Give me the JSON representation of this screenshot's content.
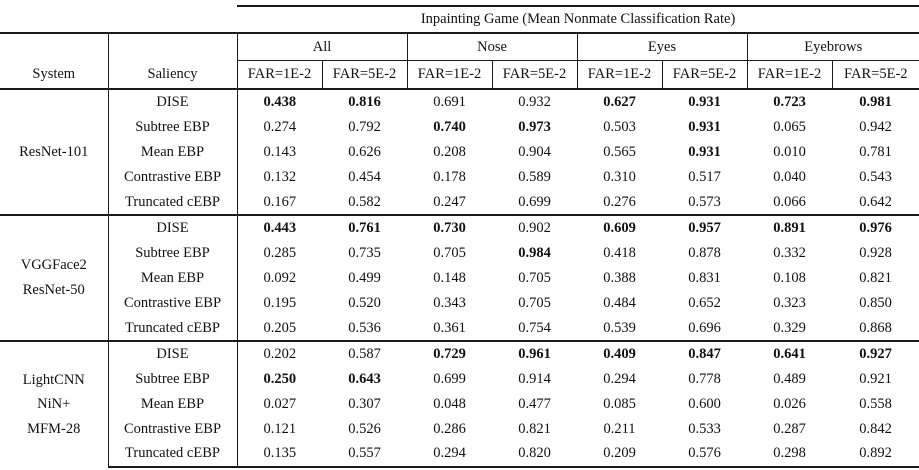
{
  "title": "Inpainting Game (Mean Nonmate Classification Rate)",
  "columns": {
    "system_label": "System",
    "saliency_label": "Saliency",
    "groups": [
      "All",
      "Nose",
      "Eyes",
      "Eyebrows"
    ],
    "far_labels": [
      "FAR=1E-2",
      "FAR=5E-2",
      "FAR=1E-2",
      "FAR=5E-2",
      "FAR=1E-2",
      "FAR=5E-2",
      "FAR=1E-2",
      "FAR=5E-2"
    ]
  },
  "blocks": [
    {
      "system": "ResNet-101",
      "rows": [
        {
          "saliency": "DISE",
          "values": [
            "0.438",
            "0.816",
            "0.691",
            "0.932",
            "0.627",
            "0.931",
            "0.723",
            "0.981"
          ],
          "bold": [
            true,
            true,
            false,
            false,
            true,
            true,
            true,
            true
          ]
        },
        {
          "saliency": "Subtree EBP",
          "values": [
            "0.274",
            "0.792",
            "0.740",
            "0.973",
            "0.503",
            "0.931",
            "0.065",
            "0.942"
          ],
          "bold": [
            false,
            false,
            true,
            true,
            false,
            true,
            false,
            false
          ]
        },
        {
          "saliency": "Mean EBP",
          "values": [
            "0.143",
            "0.626",
            "0.208",
            "0.904",
            "0.565",
            "0.931",
            "0.010",
            "0.781"
          ],
          "bold": [
            false,
            false,
            false,
            false,
            false,
            true,
            false,
            false
          ]
        },
        {
          "saliency": "Contrastive EBP",
          "values": [
            "0.132",
            "0.454",
            "0.178",
            "0.589",
            "0.310",
            "0.517",
            "0.040",
            "0.543"
          ],
          "bold": [
            false,
            false,
            false,
            false,
            false,
            false,
            false,
            false
          ]
        },
        {
          "saliency": "Truncated cEBP",
          "values": [
            "0.167",
            "0.582",
            "0.247",
            "0.699",
            "0.276",
            "0.573",
            "0.066",
            "0.642"
          ],
          "bold": [
            false,
            false,
            false,
            false,
            false,
            false,
            false,
            false
          ]
        }
      ]
    },
    {
      "system": "VGGFace2\nResNet-50",
      "rows": [
        {
          "saliency": "DISE",
          "values": [
            "0.443",
            "0.761",
            "0.730",
            "0.902",
            "0.609",
            "0.957",
            "0.891",
            "0.976"
          ],
          "bold": [
            true,
            true,
            true,
            false,
            true,
            true,
            true,
            true
          ]
        },
        {
          "saliency": "Subtree EBP",
          "values": [
            "0.285",
            "0.735",
            "0.705",
            "0.984",
            "0.418",
            "0.878",
            "0.332",
            "0.928"
          ],
          "bold": [
            false,
            false,
            false,
            true,
            false,
            false,
            false,
            false
          ]
        },
        {
          "saliency": "Mean EBP",
          "values": [
            "0.092",
            "0.499",
            "0.148",
            "0.705",
            "0.388",
            "0.831",
            "0.108",
            "0.821"
          ],
          "bold": [
            false,
            false,
            false,
            false,
            false,
            false,
            false,
            false
          ]
        },
        {
          "saliency": "Contrastive EBP",
          "values": [
            "0.195",
            "0.520",
            "0.343",
            "0.705",
            "0.484",
            "0.652",
            "0.323",
            "0.850"
          ],
          "bold": [
            false,
            false,
            false,
            false,
            false,
            false,
            false,
            false
          ]
        },
        {
          "saliency": "Truncated cEBP",
          "values": [
            "0.205",
            "0.536",
            "0.361",
            "0.754",
            "0.539",
            "0.696",
            "0.329",
            "0.868"
          ],
          "bold": [
            false,
            false,
            false,
            false,
            false,
            false,
            false,
            false
          ]
        }
      ]
    },
    {
      "system": "LightCNN\nNiN+\nMFM-28",
      "rows": [
        {
          "saliency": "DISE",
          "values": [
            "0.202",
            "0.587",
            "0.729",
            "0.961",
            "0.409",
            "0.847",
            "0.641",
            "0.927"
          ],
          "bold": [
            false,
            false,
            true,
            true,
            true,
            true,
            true,
            true
          ]
        },
        {
          "saliency": "Subtree EBP",
          "values": [
            "0.250",
            "0.643",
            "0.699",
            "0.914",
            "0.294",
            "0.778",
            "0.489",
            "0.921"
          ],
          "bold": [
            true,
            true,
            false,
            false,
            false,
            false,
            false,
            false
          ]
        },
        {
          "saliency": "Mean EBP",
          "values": [
            "0.027",
            "0.307",
            "0.048",
            "0.477",
            "0.085",
            "0.600",
            "0.026",
            "0.558"
          ],
          "bold": [
            false,
            false,
            false,
            false,
            false,
            false,
            false,
            false
          ]
        },
        {
          "saliency": "Contrastive EBP",
          "values": [
            "0.121",
            "0.526",
            "0.286",
            "0.821",
            "0.211",
            "0.533",
            "0.287",
            "0.842"
          ],
          "bold": [
            false,
            false,
            false,
            false,
            false,
            false,
            false,
            false
          ]
        },
        {
          "saliency": "Truncated cEBP",
          "values": [
            "0.135",
            "0.557",
            "0.294",
            "0.820",
            "0.209",
            "0.576",
            "0.298",
            "0.892"
          ],
          "bold": [
            false,
            false,
            false,
            false,
            false,
            false,
            false,
            false
          ]
        }
      ]
    }
  ]
}
